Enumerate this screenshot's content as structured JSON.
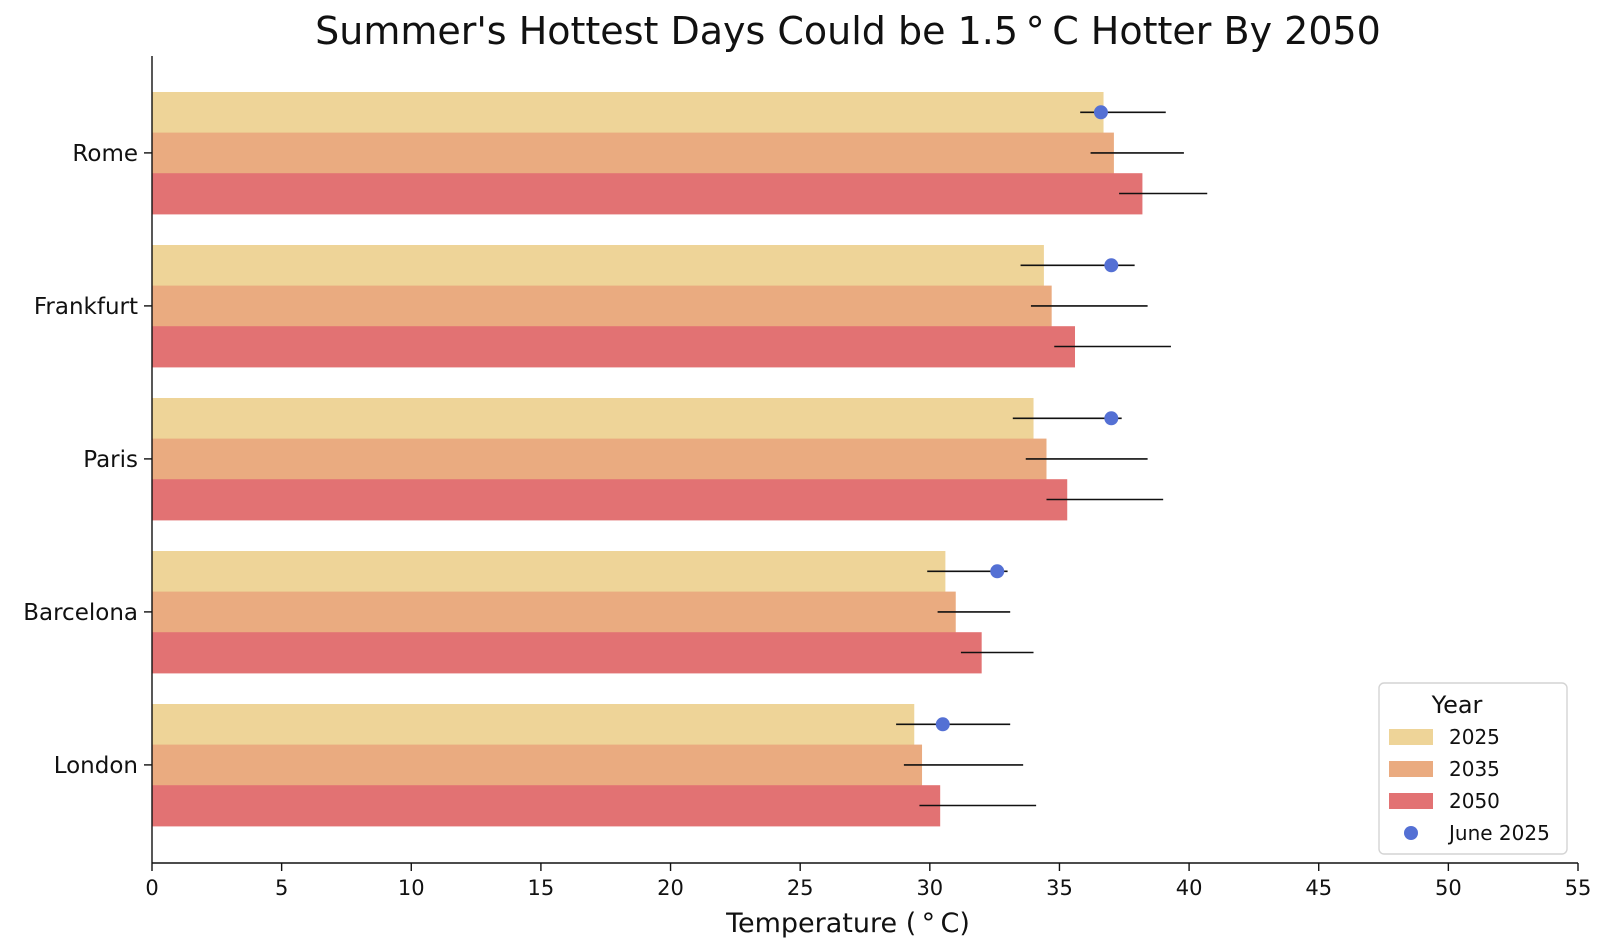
{
  "chart_data": {
    "type": "bar",
    "orientation": "horizontal",
    "title": "Summer's Hottest Days Could be 1.5 ° C Hotter By 2050",
    "xlabel": "Temperature ( ° C)",
    "ylabel": "",
    "xlim": [
      0,
      55
    ],
    "xticks": [
      0,
      5,
      10,
      15,
      20,
      25,
      30,
      35,
      40,
      45,
      50,
      55
    ],
    "grid": false,
    "categories": [
      "Rome",
      "Frankfurt",
      "Paris",
      "Barcelona",
      "London"
    ],
    "series": [
      {
        "name": "2025",
        "color": "#EED498",
        "values": [
          36.7,
          34.4,
          34.0,
          30.6,
          29.4
        ],
        "error_low": [
          35.8,
          33.5,
          33.2,
          29.9,
          28.7
        ],
        "error_high": [
          39.1,
          37.9,
          37.4,
          33.0,
          33.1
        ]
      },
      {
        "name": "2035",
        "color": "#EAAB80",
        "values": [
          37.1,
          34.7,
          34.5,
          31.0,
          29.7
        ],
        "error_low": [
          36.2,
          33.9,
          33.7,
          30.3,
          29.0
        ],
        "error_high": [
          39.8,
          38.4,
          38.4,
          33.1,
          33.6
        ]
      },
      {
        "name": "2050",
        "color": "#E27273",
        "values": [
          38.2,
          35.6,
          35.3,
          32.0,
          30.4
        ],
        "error_low": [
          37.3,
          34.8,
          34.5,
          31.2,
          29.6
        ],
        "error_high": [
          40.7,
          39.3,
          39.0,
          34.0,
          34.1
        ]
      }
    ],
    "markers": {
      "name": "June 2025",
      "color": "#5470D4",
      "values": [
        36.6,
        37.0,
        37.0,
        32.6,
        30.5
      ]
    },
    "legend": {
      "title": "Year",
      "position": "bottom-right"
    }
  }
}
